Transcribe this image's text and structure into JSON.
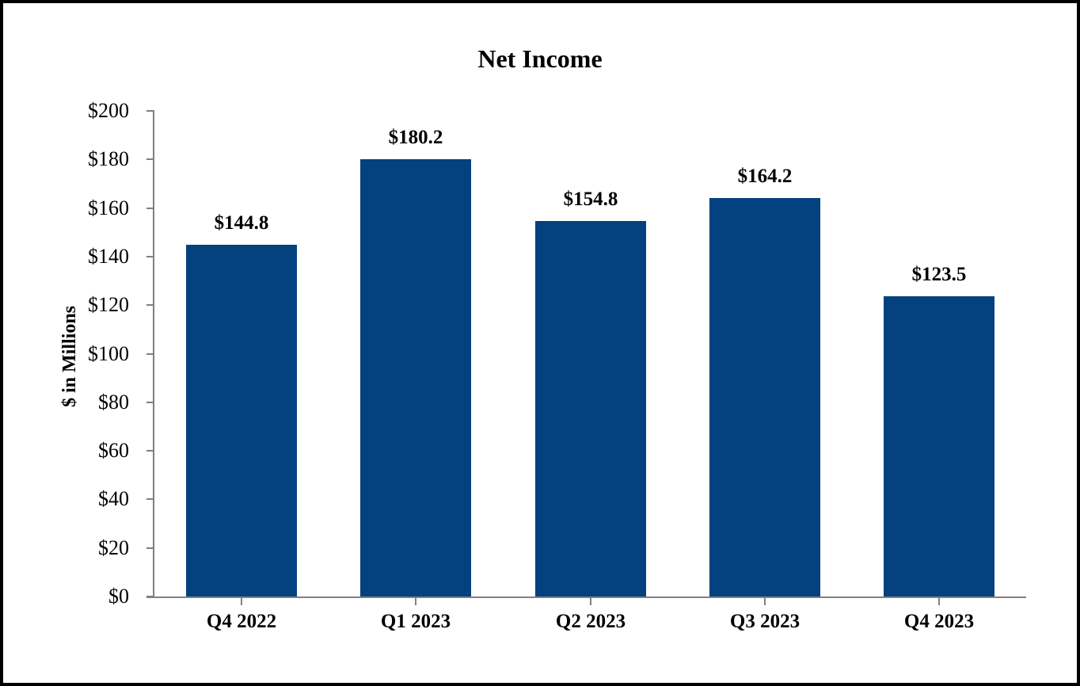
{
  "chart_data": {
    "type": "bar",
    "title": "Net Income",
    "ylabel": "$ in Millions",
    "xlabel": "",
    "categories": [
      "Q4 2022",
      "Q1 2023",
      "Q2 2023",
      "Q3 2023",
      "Q4 2023"
    ],
    "values": [
      144.8,
      180.2,
      154.8,
      164.2,
      123.5
    ],
    "data_labels": [
      "$144.8",
      "$180.2",
      "$154.8",
      "$164.2",
      "$123.5"
    ],
    "ylim": [
      0,
      200
    ],
    "ytick_step": 20,
    "ytick_labels": [
      "$0",
      "$20",
      "$40",
      "$60",
      "$80",
      "$100",
      "$120",
      "$140",
      "$160",
      "$180",
      "$200"
    ],
    "grid": false,
    "legend": "none",
    "colors": {
      "bar_fill": "#04417F",
      "axis_line": "#808080",
      "text": "#000000",
      "frame_border": "#000000",
      "background": "#FFFFFF"
    }
  }
}
